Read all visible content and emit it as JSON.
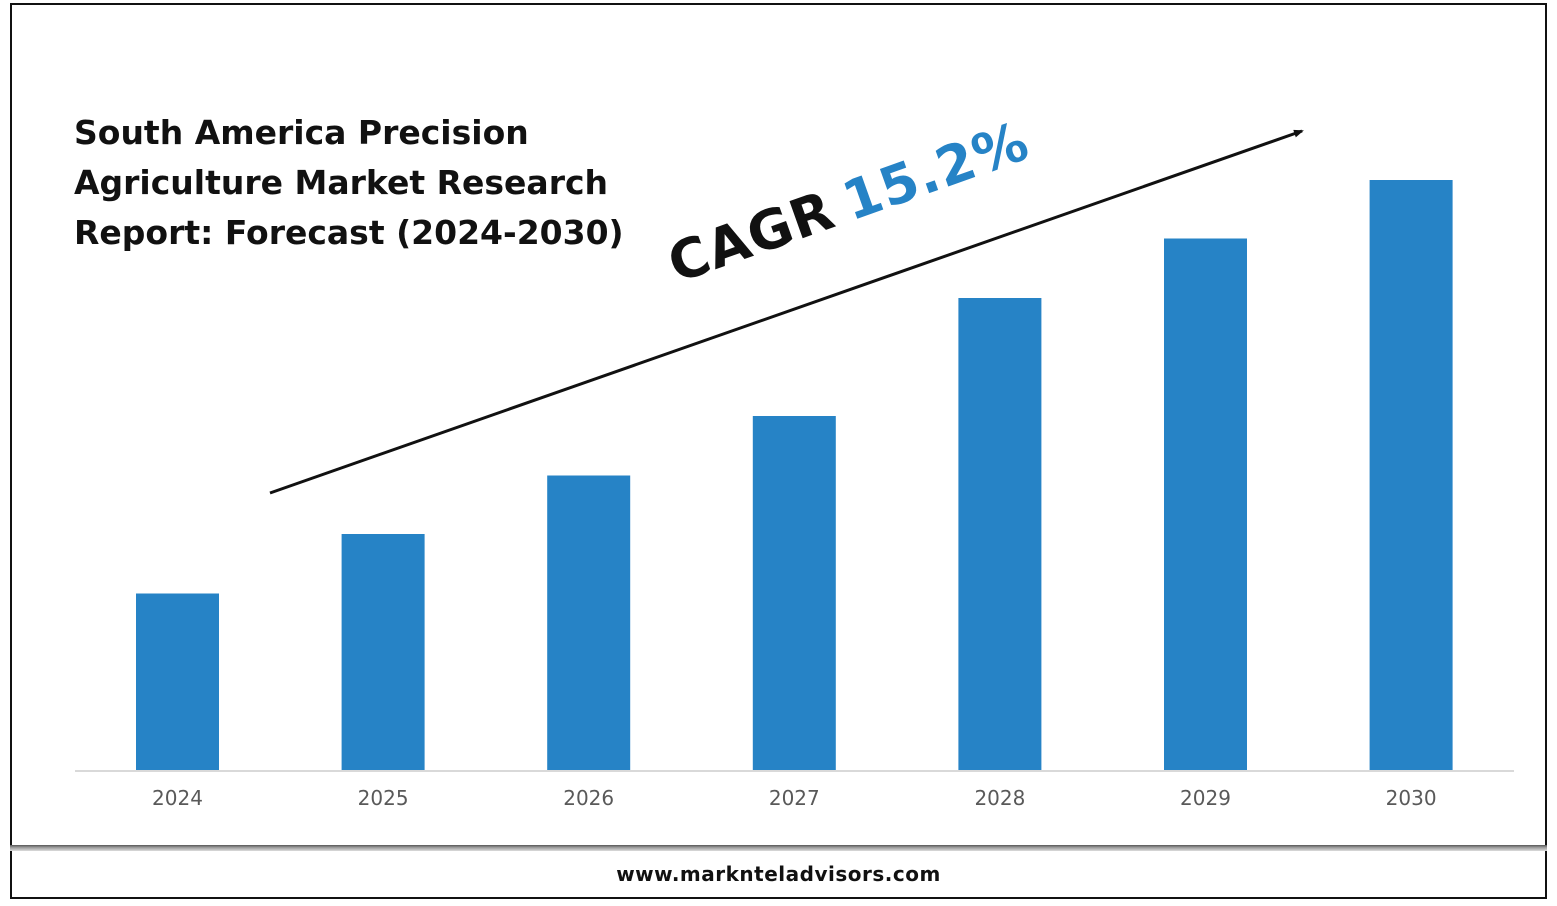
{
  "chart_data": {
    "type": "bar",
    "title_lines": [
      "South America Precision",
      "Agriculture Market Research",
      "Report: Forecast (2024-2030)"
    ],
    "categories": [
      "2024",
      "2025",
      "2026",
      "2027",
      "2028",
      "2029",
      "2030"
    ],
    "values": [
      178,
      238,
      297,
      357,
      476,
      536,
      595
    ],
    "ylim": [
      0,
      600
    ],
    "xlabel": "",
    "ylabel": "",
    "grid": false,
    "bar_color": "#2683c6",
    "annotation": {
      "cagr_label": "CAGR",
      "cagr_value": "15.2%",
      "cagr_value_color": "#2683c6",
      "trend_arrow": true
    }
  },
  "footer": {
    "website": "www.marknteladvisors.com"
  }
}
